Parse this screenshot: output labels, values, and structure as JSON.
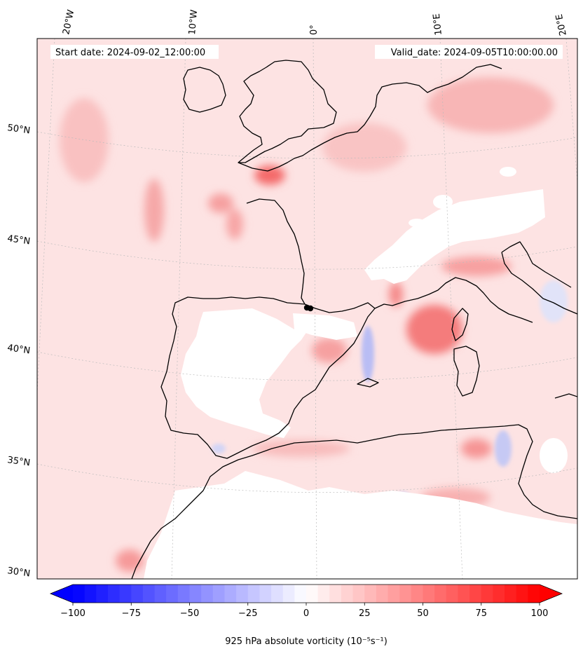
{
  "map": {
    "start_date_text": "Start date: 2024-09-02_12:00:00",
    "valid_date_text": "Valid_date: 2024-09-05T10:00:00.00",
    "projection": "conic",
    "region": "Western Europe, Iberia and the western Mediterranean",
    "lon_labels": [
      "20°W",
      "10°W",
      "0°",
      "10°E",
      "20°E"
    ],
    "lat_labels": [
      "50°N",
      "45°N",
      "40°N",
      "35°N",
      "30°N"
    ],
    "gridlines": true,
    "point_marker": {
      "lon": 0.1,
      "lat": 42.0,
      "color": "#000000"
    }
  },
  "colorbar": {
    "label": "925 hPa absolute vorticity (10⁻⁵s⁻¹)",
    "ticks": [
      "−100",
      "−75",
      "−50",
      "−25",
      "0",
      "25",
      "50",
      "75",
      "100"
    ],
    "min": -100,
    "max": 100,
    "cmap": "bwr",
    "low_color": "#0000ff",
    "mid_color": "#ffffff",
    "high_color": "#ff0000",
    "extend": "both"
  },
  "colors": {
    "coastline": "#000000",
    "gridline": "#bbbbbb",
    "field_base": "#fde3e3"
  }
}
